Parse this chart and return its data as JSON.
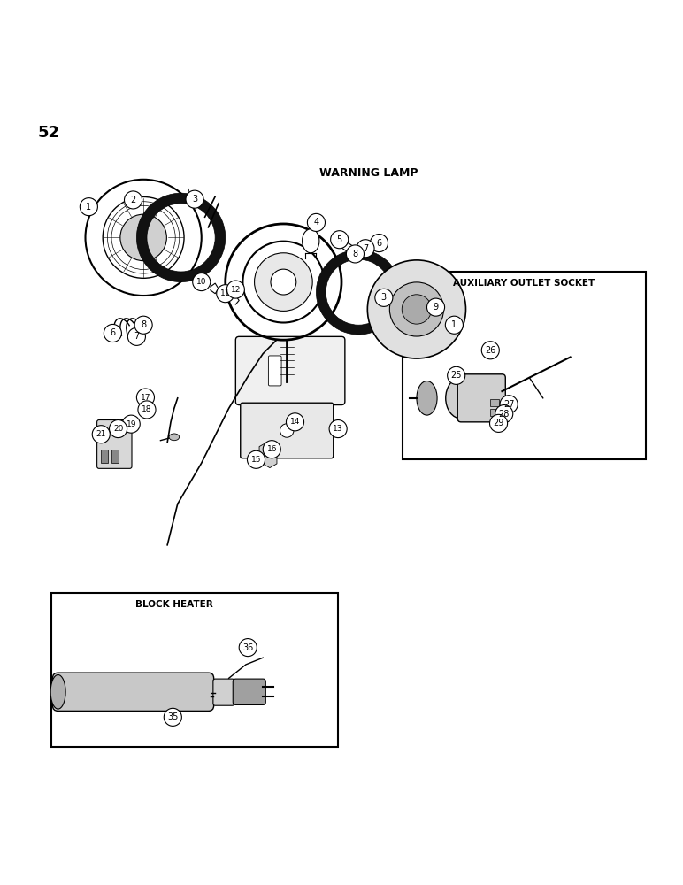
{
  "page_number": "52",
  "title_warning_lamp": "WARNING LAMP",
  "title_aux": "AUXILIARY OUTLET SOCKET",
  "title_block": "BLOCK HEATER",
  "bg_color": "#ffffff",
  "line_color": "#000000",
  "fig_width": 7.72,
  "fig_height": 10.0,
  "dpi": 100
}
